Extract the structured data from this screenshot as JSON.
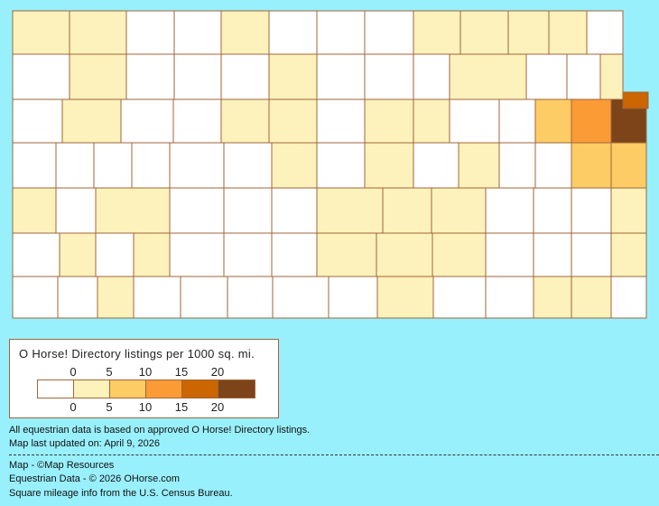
{
  "map": {
    "region": "Kansas counties",
    "border_color": "#a0663a",
    "county_levels": [
      1,
      1,
      0,
      0,
      1,
      0,
      0,
      0,
      1,
      1,
      1,
      1,
      0,
      0,
      1,
      0,
      0,
      0,
      1,
      0,
      0,
      0,
      1,
      0,
      0,
      1,
      0,
      1,
      0,
      0,
      1,
      1,
      0,
      1,
      1,
      0,
      0,
      2,
      3,
      5,
      4,
      0,
      0,
      0,
      0,
      0,
      0,
      1,
      0,
      1,
      0,
      1,
      0,
      0,
      2,
      2,
      1,
      0,
      1,
      0,
      0,
      0,
      1,
      1,
      1,
      0,
      0,
      0,
      1,
      0,
      1,
      0,
      1,
      0,
      0,
      0,
      1,
      1,
      1,
      0,
      0,
      0,
      1,
      0,
      0,
      1,
      0,
      0,
      0,
      0,
      0,
      1,
      0,
      0,
      1,
      1,
      0
    ]
  },
  "legend": {
    "title": "O Horse! Directory listings per 1000 sq. mi.",
    "ticks": [
      "0",
      "5",
      "10",
      "15",
      "20"
    ],
    "colors": [
      "#ffffff",
      "#fdf2bb",
      "#fdcc64",
      "#fb9b36",
      "#cc6602",
      "#7d4419"
    ]
  },
  "notes": {
    "line1": "All equestrian data is based on approved O Horse! Directory listings.",
    "line2": "Map last updated on: April 9, 2026",
    "credit_map": "Map - ©Map Resources",
    "credit_data": "Equestrian Data - © 2026 OHorse.com",
    "credit_census": "Square mileage info from the U.S. Census Bureau."
  }
}
